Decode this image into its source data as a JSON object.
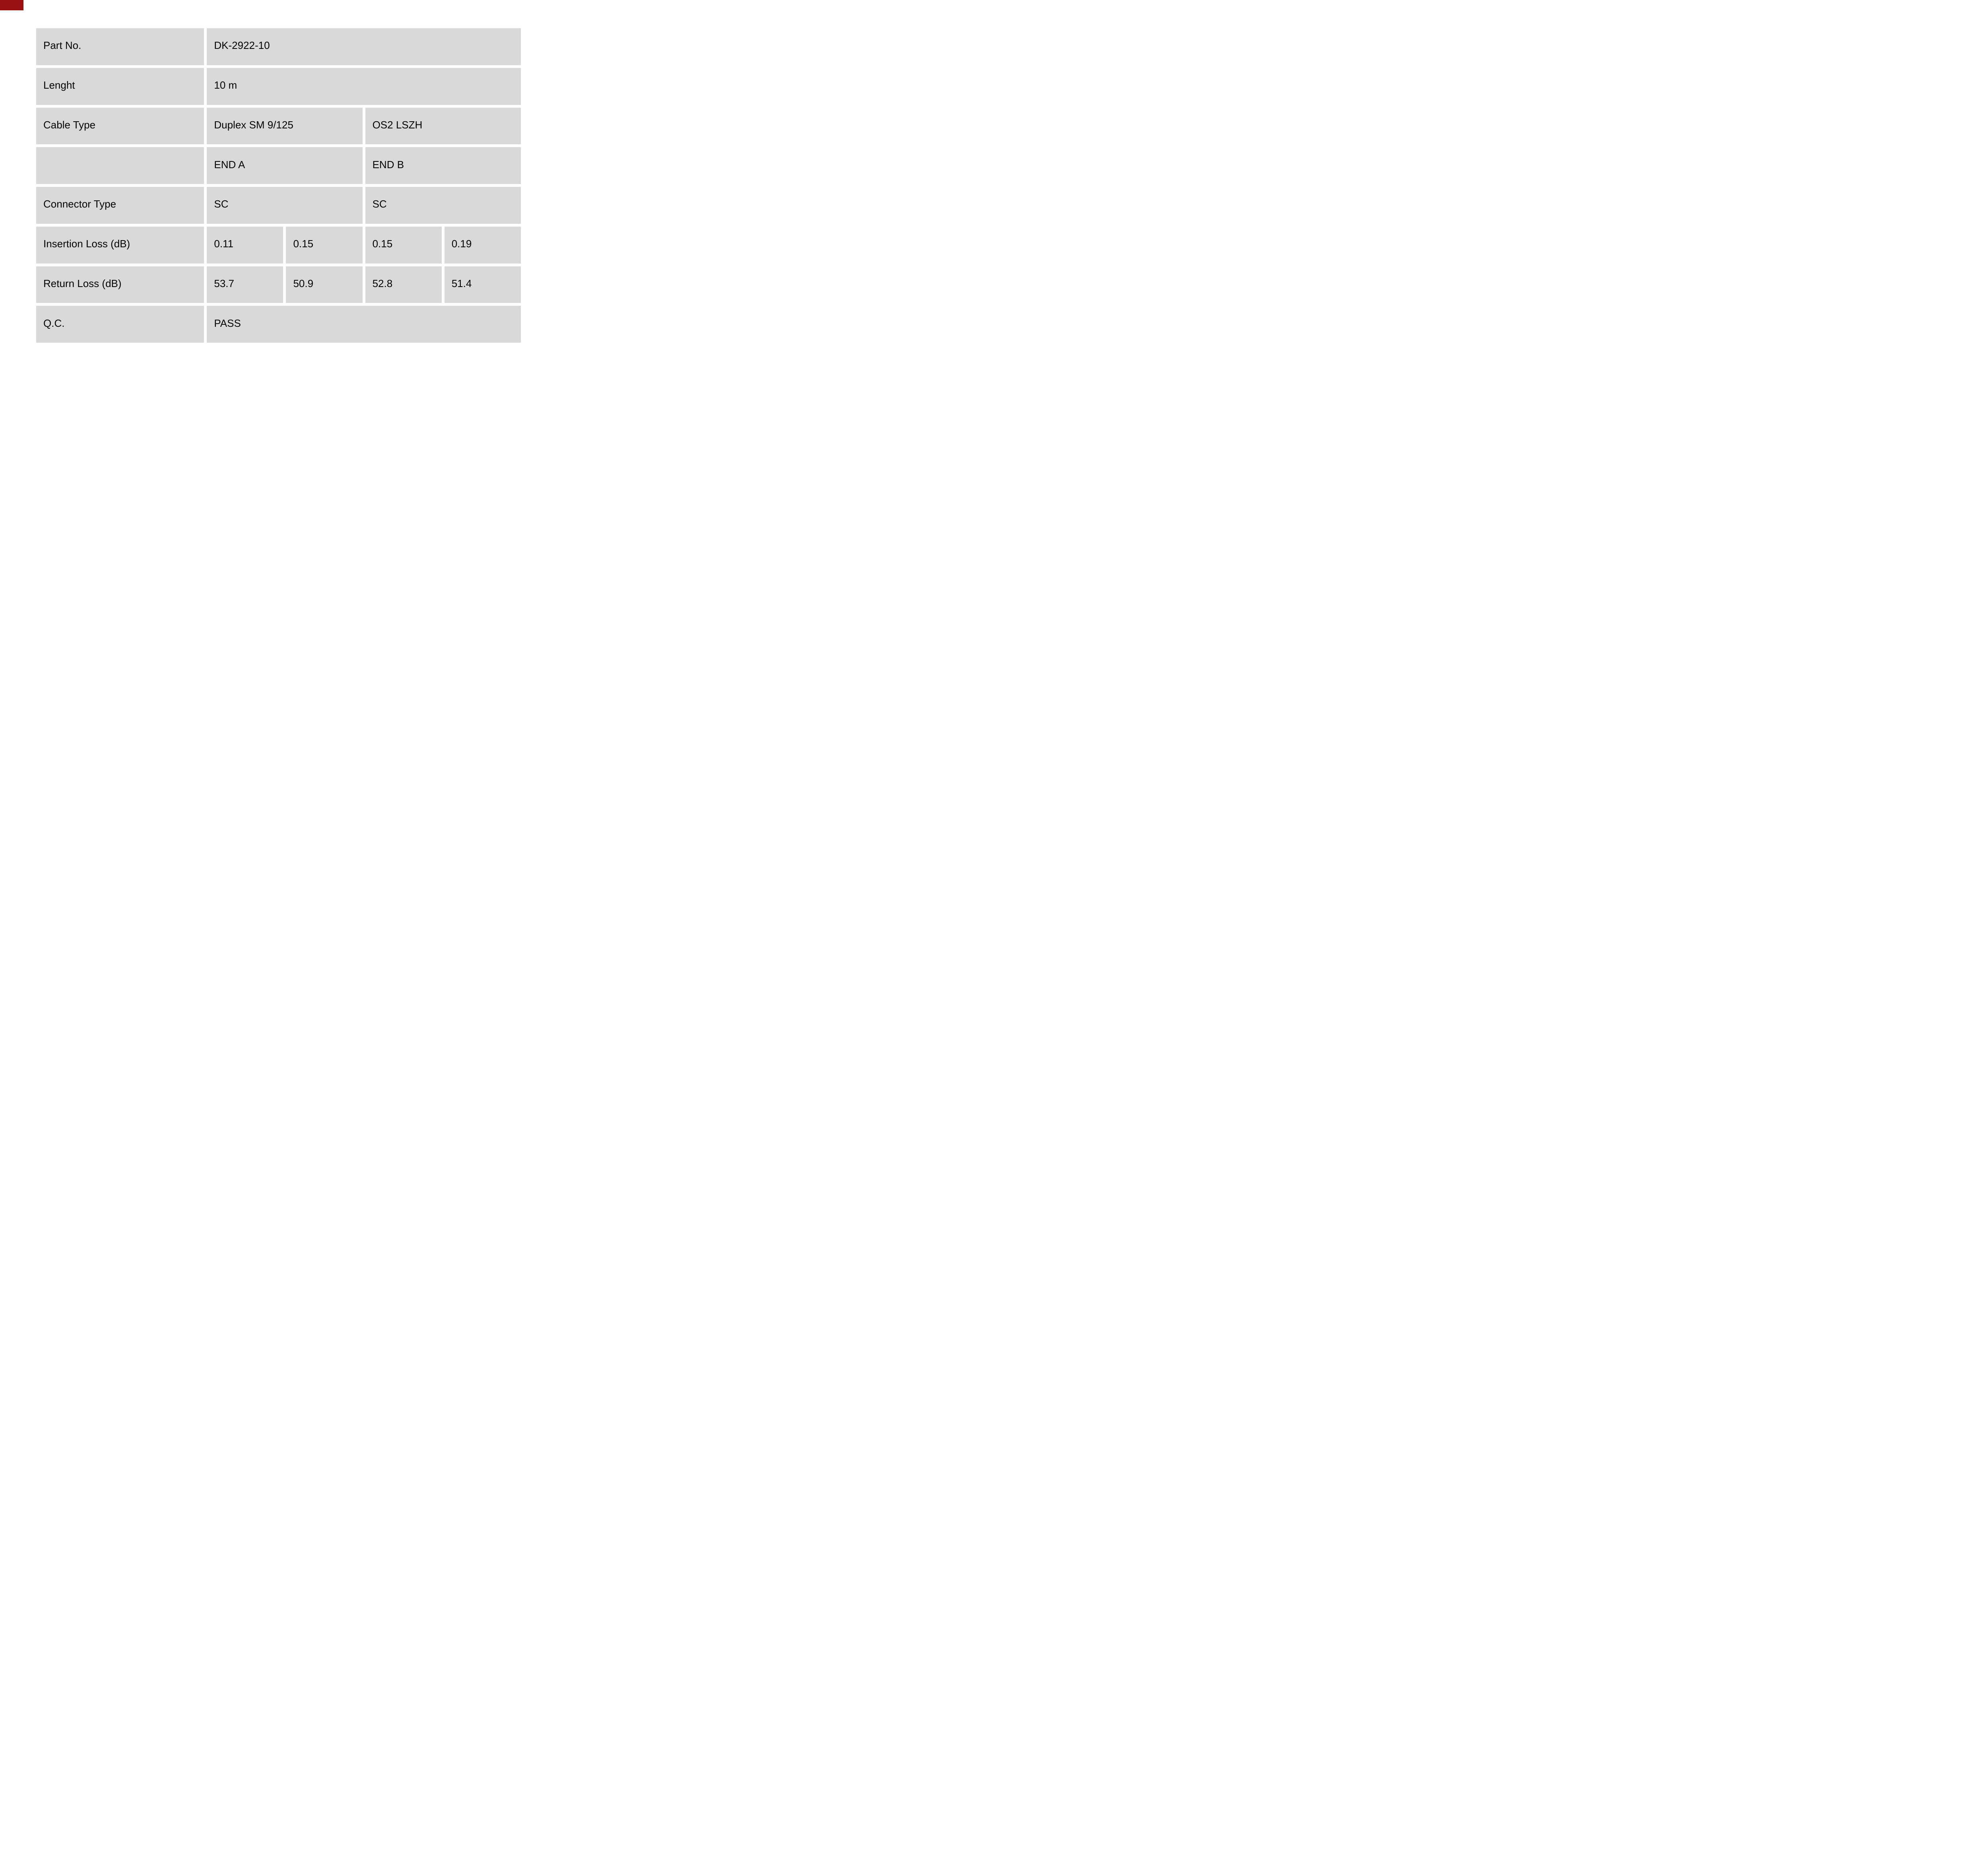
{
  "colors": {
    "cell_bg": "#d9d9d9",
    "page_bg": "#ffffff",
    "text": "#000000",
    "corner_mark": "#991111"
  },
  "table": {
    "rows": [
      {
        "label": "Part No.",
        "cells": [
          {
            "text": "DK-2922-10",
            "span": 4
          }
        ]
      },
      {
        "label": "Lenght",
        "cells": [
          {
            "text": "10 m",
            "span": 4
          }
        ]
      },
      {
        "label": "Cable Type",
        "cells": [
          {
            "text": "Duplex SM 9/125",
            "span": 2
          },
          {
            "text": "OS2 LSZH",
            "span": 2
          }
        ]
      },
      {
        "label": "",
        "cells": [
          {
            "text": "END A",
            "span": 2
          },
          {
            "text": "END B",
            "span": 2
          }
        ]
      },
      {
        "label": "Connector Type",
        "cells": [
          {
            "text": "SC",
            "span": 2
          },
          {
            "text": "SC",
            "span": 2
          }
        ]
      },
      {
        "label": "Insertion Loss (dB)",
        "cells": [
          {
            "text": "0.11",
            "span": 1
          },
          {
            "text": "0.15",
            "span": 1
          },
          {
            "text": "0.15",
            "span": 1
          },
          {
            "text": "0.19",
            "span": 1
          }
        ]
      },
      {
        "label": "Return Loss (dB)",
        "cells": [
          {
            "text": "53.7",
            "span": 1
          },
          {
            "text": "50.9",
            "span": 1
          },
          {
            "text": "52.8",
            "span": 1
          },
          {
            "text": "51.4",
            "span": 1
          }
        ]
      },
      {
        "label": "Q.C.",
        "cells": [
          {
            "text": "PASS",
            "span": 4
          }
        ]
      }
    ]
  }
}
